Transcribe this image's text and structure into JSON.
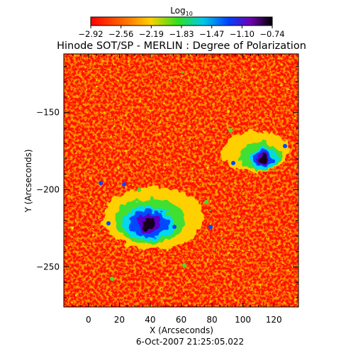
{
  "chart_data": {
    "type": "heatmap",
    "title": "Hinode SOT/SP - MERLIN : Degree of Polarization",
    "xlabel": "X (Arcseconds)",
    "ylabel": "Y (Arcseconds)",
    "date_label": "6-Oct-2007 21:25:05.022",
    "colorbar": {
      "label_main": "Log",
      "label_sub": "10",
      "range": [
        -2.92,
        -0.74
      ],
      "ticks": [
        "-2.92",
        "-2.56",
        "-2.19",
        "-1.83",
        "-1.47",
        "-1.10",
        "-0.74"
      ]
    },
    "xlim": [
      -16,
      136
    ],
    "ylim": [
      -276,
      -112
    ],
    "x_ticks": [
      0,
      20,
      40,
      60,
      80,
      100,
      120
    ],
    "x_tick_labels": [
      "0",
      "20",
      "40",
      "60",
      "80",
      "100",
      "120"
    ],
    "y_ticks": [
      -150,
      -200,
      -250
    ],
    "y_tick_labels": [
      "−150",
      "−200",
      "−250"
    ],
    "colormap": "rainbow (red = low, green/cyan = middle, blue/purple/black = high)",
    "features": [
      {
        "name": "large spot",
        "x": 39,
        "y": -222
      },
      {
        "name": "small spot",
        "x": 113,
        "y": -180
      }
    ]
  }
}
